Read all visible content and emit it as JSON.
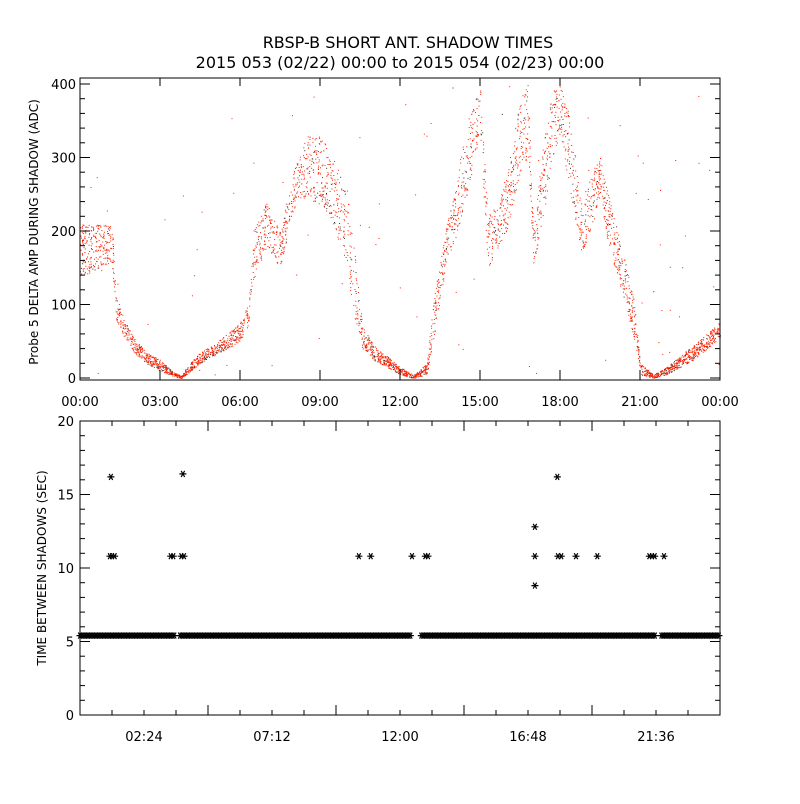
{
  "chart_data": [
    {
      "type": "scatter",
      "title": "RBSP-B SHORT ANT. SHADOW TIMES",
      "subtitle": "2015 053 (02/22) 00:00 to 2015 054 (02/23) 00:00",
      "ylabel": "Probe 5 DELTA AMP DURING SHADOW (ADC)",
      "xlim_hours": [
        0,
        24
      ],
      "ylim": [
        0,
        400
      ],
      "xticks": [
        "00:00",
        "03:00",
        "06:00",
        "09:00",
        "12:00",
        "15:00",
        "18:00",
        "21:00",
        "00:00"
      ],
      "yticks": [
        "0",
        "100",
        "200",
        "300",
        "400"
      ],
      "color": "#ff2000",
      "envelope_hours_min_max": [
        [
          0,
          140,
          210
        ],
        [
          1.2,
          150,
          210
        ],
        [
          1.35,
          80,
          115
        ],
        [
          1.6,
          60,
          85
        ],
        [
          2,
          35,
          55
        ],
        [
          2.5,
          20,
          35
        ],
        [
          3,
          10,
          25
        ],
        [
          3.5,
          2,
          8
        ],
        [
          3.8,
          0,
          3
        ],
        [
          4,
          5,
          15
        ],
        [
          4.5,
          20,
          35
        ],
        [
          5,
          30,
          45
        ],
        [
          5.5,
          40,
          60
        ],
        [
          6,
          50,
          75
        ],
        [
          6.3,
          70,
          100
        ],
        [
          6.5,
          130,
          200
        ],
        [
          7,
          180,
          240
        ],
        [
          7.5,
          150,
          200
        ],
        [
          8,
          230,
          280
        ],
        [
          8.5,
          250,
          330
        ],
        [
          9,
          230,
          330
        ],
        [
          9.5,
          210,
          300
        ],
        [
          10,
          150,
          260
        ],
        [
          10.3,
          80,
          170
        ],
        [
          10.6,
          40,
          70
        ],
        [
          11,
          25,
          45
        ],
        [
          11.5,
          15,
          30
        ],
        [
          12,
          5,
          15
        ],
        [
          12.5,
          0,
          4
        ],
        [
          13,
          5,
          20
        ],
        [
          13.3,
          60,
          120
        ],
        [
          13.7,
          150,
          200
        ],
        [
          14,
          180,
          250
        ],
        [
          14.5,
          250,
          350
        ],
        [
          15,
          330,
          400
        ],
        [
          15.3,
          150,
          220
        ],
        [
          15.7,
          180,
          240
        ],
        [
          16,
          200,
          280
        ],
        [
          16.5,
          280,
          380
        ],
        [
          16.8,
          300,
          400
        ],
        [
          17,
          150,
          200
        ],
        [
          17.3,
          200,
          300
        ],
        [
          17.7,
          300,
          390
        ],
        [
          18,
          330,
          400
        ],
        [
          18.4,
          250,
          350
        ],
        [
          18.8,
          170,
          240
        ],
        [
          19.2,
          200,
          280
        ],
        [
          19.5,
          250,
          300
        ],
        [
          19.8,
          180,
          250
        ],
        [
          20.3,
          120,
          180
        ],
        [
          20.8,
          50,
          100
        ],
        [
          21,
          5,
          20
        ],
        [
          21.5,
          0,
          5
        ],
        [
          22,
          5,
          15
        ],
        [
          22.5,
          15,
          30
        ],
        [
          23,
          25,
          45
        ],
        [
          23.5,
          40,
          60
        ],
        [
          24,
          55,
          80
        ]
      ]
    },
    {
      "type": "scatter",
      "ylabel": "TIME BETWEEN SHADOWS (SEC)",
      "xlim_hours": [
        0,
        24
      ],
      "ylim": [
        0,
        20
      ],
      "xticks": [
        {
          "h": 2.4,
          "label": "02:24"
        },
        {
          "h": 7.2,
          "label": "07:12"
        },
        {
          "h": 12,
          "label": "12:00"
        },
        {
          "h": 16.8,
          "label": "16:48"
        },
        {
          "h": 21.6,
          "label": "21:36"
        }
      ],
      "yticks": [
        "0",
        "5",
        "10",
        "15",
        "20"
      ],
      "marker": "*",
      "baseline_value": 5.4,
      "baseline_segments_hours": [
        [
          0,
          3.6
        ],
        [
          3.75,
          12.45
        ],
        [
          12.8,
          21.6
        ],
        [
          21.8,
          24
        ]
      ],
      "outliers": [
        [
          1.16,
          16.2
        ],
        [
          1.12,
          10.8
        ],
        [
          1.2,
          10.8
        ],
        [
          1.3,
          10.8
        ],
        [
          3.4,
          10.8
        ],
        [
          3.5,
          10.8
        ],
        [
          3.8,
          10.8
        ],
        [
          3.9,
          10.8
        ],
        [
          3.86,
          16.4
        ],
        [
          10.46,
          10.8
        ],
        [
          10.9,
          10.8
        ],
        [
          12.45,
          10.8
        ],
        [
          12.95,
          10.8
        ],
        [
          13.05,
          10.8
        ],
        [
          17.06,
          12.8
        ],
        [
          17.06,
          10.8
        ],
        [
          17.06,
          8.8
        ],
        [
          17.9,
          16.2
        ],
        [
          17.92,
          10.8
        ],
        [
          18.05,
          10.8
        ],
        [
          18.6,
          10.8
        ],
        [
          19.4,
          10.8
        ],
        [
          21.35,
          10.8
        ],
        [
          21.45,
          10.8
        ],
        [
          21.55,
          10.8
        ],
        [
          21.9,
          10.8
        ]
      ]
    }
  ]
}
